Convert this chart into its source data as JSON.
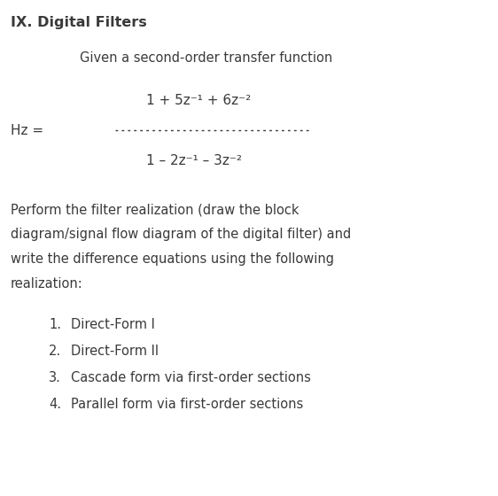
{
  "title": "IX. Digital Filters",
  "subtitle": "Given a second-order transfer function",
  "numerator": "1 + 5z⁻¹ + 6z⁻²",
  "denominator": "1 – 2z⁻¹ – 3z⁻²",
  "hz_label": "Hz =",
  "divider_dots": "- - - - - - - - - - - - - - - - - - - - - -",
  "body_lines": [
    "Perform the filter realization (draw the block",
    "diagram/signal flow diagram of the digital filter) and",
    "write the difference equations using the following",
    "realization:"
  ],
  "list_items": [
    "Direct-Form I",
    "Direct-Form II",
    "Cascade form via first-order sections",
    "Parallel form via first-order sections"
  ],
  "bg_color": "#ffffff",
  "text_color": "#3a3a3a",
  "title_fontsize": 11.5,
  "body_fontsize": 10.5,
  "formula_fontsize": 11.0,
  "list_fontsize": 10.5,
  "subtitle_fontsize": 10.5
}
